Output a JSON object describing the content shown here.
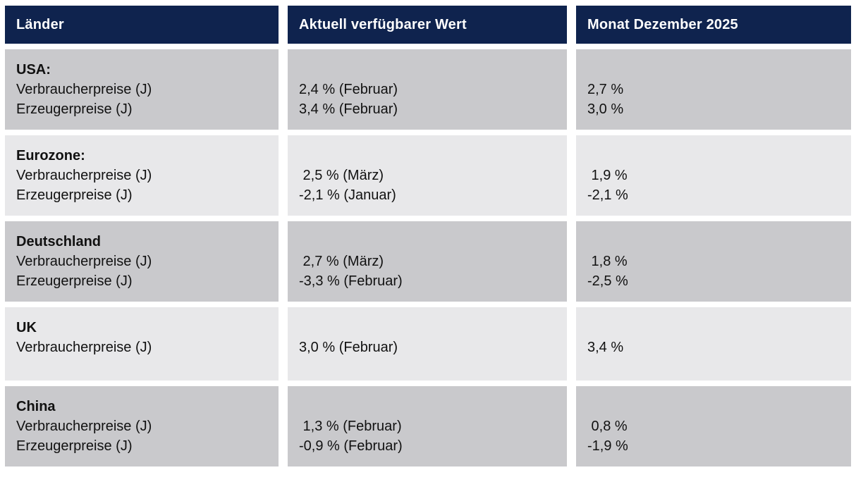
{
  "colors": {
    "header_bg": "#0f234e",
    "header_text": "#ffffff",
    "row_dark": "#c9c9cc",
    "row_light": "#e8e8ea",
    "body_text": "#111111",
    "page_bg": "#ffffff"
  },
  "table": {
    "columns": [
      {
        "label": "Länder"
      },
      {
        "label": "Aktuell verfügbarer Wert"
      },
      {
        "label": "Monat Dezember 2025"
      }
    ],
    "rows": [
      {
        "country": "USA:",
        "metrics": [
          "Verbraucherpreise (J)",
          "Erzeugerpreise (J)"
        ],
        "current_values": [
          "2,4 % (Februar)",
          "3,4 % (Februar)"
        ],
        "december_values": [
          "2,7 %",
          "3,0 %"
        ]
      },
      {
        "country": "Eurozone:",
        "metrics": [
          "Verbraucherpreise (J)",
          "Erzeugerpreise (J)"
        ],
        "current_values": [
          " 2,5 % (März)",
          "-2,1 % (Januar)"
        ],
        "december_values": [
          " 1,9 %",
          "-2,1 %"
        ]
      },
      {
        "country": "Deutschland",
        "metrics": [
          "Verbraucherpreise (J)",
          "Erzeugerpreise (J)"
        ],
        "current_values": [
          " 2,7 % (März)",
          "-3,3 % (Februar)"
        ],
        "december_values": [
          " 1,8 %",
          "-2,5 %"
        ]
      },
      {
        "country": "UK",
        "metrics": [
          "Verbraucherpreise (J)"
        ],
        "current_values": [
          "3,0 % (Februar)"
        ],
        "december_values": [
          "3,4 %"
        ]
      },
      {
        "country": "China",
        "metrics": [
          "Verbraucherpreise (J)",
          "Erzeugerpreise (J)"
        ],
        "current_values": [
          " 1,3 % (Februar)",
          "-0,9 % (Februar)"
        ],
        "december_values": [
          " 0,8 %",
          "-1,9 %"
        ]
      }
    ]
  }
}
